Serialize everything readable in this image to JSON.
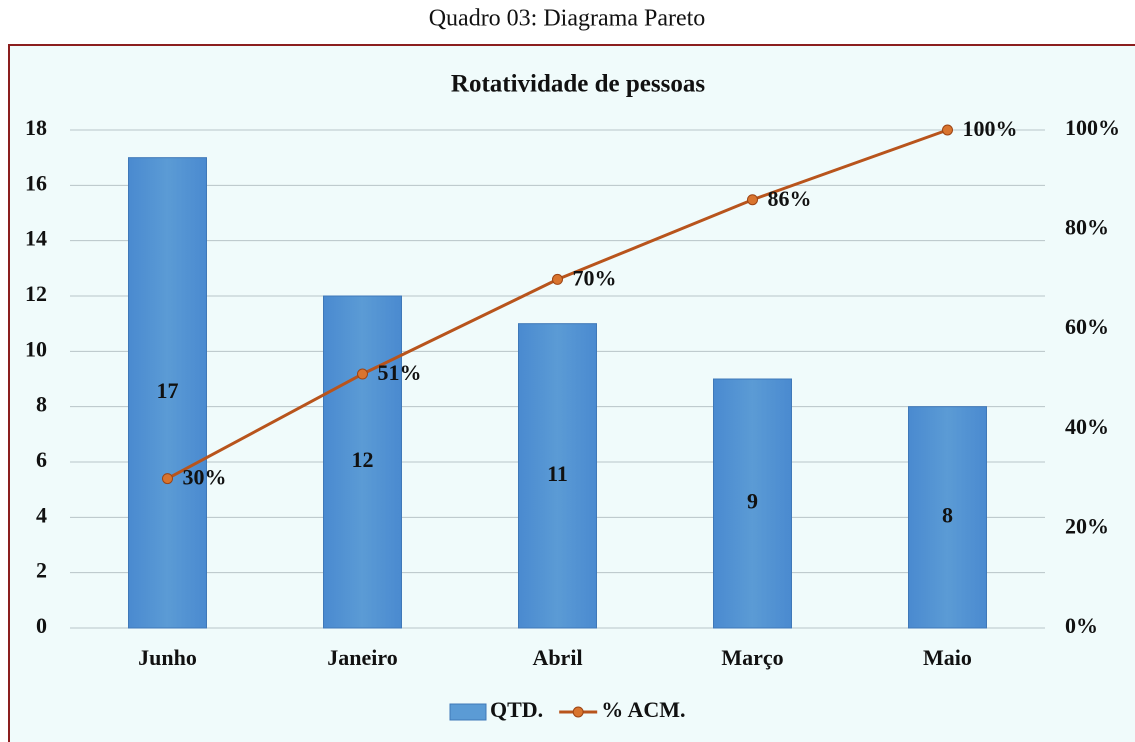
{
  "caption": "Quadro 03: Diagrama Pareto",
  "chart_data": {
    "type": "bar",
    "title": "Rotatividade de pessoas",
    "categories": [
      "Junho",
      "Janeiro",
      "Abril",
      "Março",
      "Maio"
    ],
    "series": [
      {
        "name": "QTD.",
        "type": "bar",
        "color": "#5b9bd5",
        "values": [
          17,
          12,
          11,
          9,
          8
        ]
      },
      {
        "name": "% ACM.",
        "type": "line",
        "axis": "y2",
        "color": "#b8541c",
        "values": [
          30,
          51,
          70,
          86,
          100
        ],
        "value_labels": [
          "30%",
          "51%",
          "70%",
          "86%",
          "100%"
        ]
      }
    ],
    "ylim": [
      0,
      18
    ],
    "yticks": [
      0,
      2,
      4,
      6,
      8,
      10,
      12,
      14,
      16,
      18
    ],
    "y2lim": [
      0,
      100
    ],
    "y2ticks": [
      {
        "value": 0,
        "label": "0%"
      },
      {
        "value": 20,
        "label": "20%"
      },
      {
        "value": 40,
        "label": "40%"
      },
      {
        "value": 60,
        "label": "60%"
      },
      {
        "value": 80,
        "label": "80%"
      },
      {
        "value": 100,
        "label": "100%"
      }
    ],
    "grid": true,
    "legend": "bottom"
  }
}
